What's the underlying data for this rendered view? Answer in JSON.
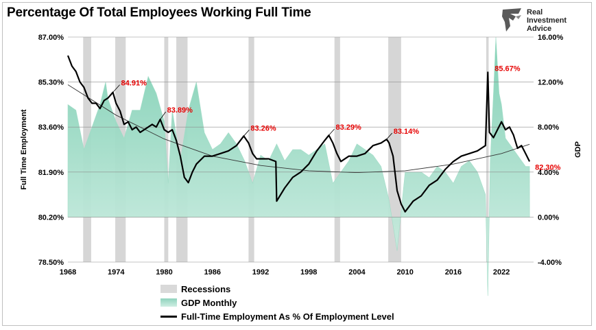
{
  "title": "Percentage Of Total Employees Working Full Time",
  "brand": {
    "line1": "Real",
    "line2": "Investment",
    "line3": "Advice"
  },
  "legend": {
    "recessions": "Recessions",
    "gdp": "GDP Monthly",
    "fte": "Full-Time Employment As % Of Employment Level"
  },
  "chart_data": {
    "type": "line",
    "title": "Percentage Of Total Employees Working Full Time",
    "ylabel_left": "Full Time Employment",
    "ylabel_right": "GDP",
    "xlim": [
      1968,
      2026
    ],
    "ylim_left": [
      78.5,
      87.0
    ],
    "ylim_right": [
      -4.0,
      16.0
    ],
    "x_ticks": [
      "1968",
      "1974",
      "1980",
      "1986",
      "1992",
      "1998",
      "2004",
      "2010",
      "2016",
      "2022"
    ],
    "y_ticks_left": [
      "87.00%",
      "85.30%",
      "83.60%",
      "81.90%",
      "80.20%",
      "78.50%"
    ],
    "y_ticks_right": [
      "16.00%",
      "12.00%",
      "8.00%",
      "4.00%",
      "0.00%",
      "-4.00%"
    ],
    "grid": true,
    "recessions": [
      [
        1969.9,
        1970.9
      ],
      [
        1973.9,
        1975.2
      ],
      [
        1980.0,
        1980.5
      ],
      [
        1981.5,
        1982.9
      ],
      [
        1990.5,
        1991.2
      ],
      [
        2001.2,
        2001.9
      ],
      [
        2007.9,
        2009.5
      ],
      [
        2020.1,
        2020.4
      ]
    ],
    "annotations": [
      {
        "label": "84.91%",
        "x": 1973.6,
        "y": 84.91
      },
      {
        "label": "83.89%",
        "x": 1979.5,
        "y": 83.89
      },
      {
        "label": "83.26%",
        "x": 1989.9,
        "y": 83.26
      },
      {
        "label": "83.29%",
        "x": 2000.5,
        "y": 83.29
      },
      {
        "label": "83.14%",
        "x": 2007.7,
        "y": 83.14
      },
      {
        "label": "85.67%",
        "x": 2020.3,
        "y": 85.67
      },
      {
        "label": "82.30%",
        "x": 2025.5,
        "y": 82.3
      }
    ],
    "series": [
      {
        "name": "Full-Time Employment As % Of Employment Level",
        "axis": "left",
        "x": [
          1968.0,
          1968.5,
          1969.0,
          1969.5,
          1970.0,
          1970.5,
          1971.0,
          1971.5,
          1972.0,
          1972.5,
          1973.0,
          1973.6,
          1974.0,
          1974.5,
          1975.0,
          1975.5,
          1976.0,
          1976.5,
          1977.0,
          1977.5,
          1978.0,
          1978.5,
          1979.0,
          1979.5,
          1980.0,
          1980.5,
          1981.0,
          1981.5,
          1982.0,
          1982.5,
          1983.0,
          1983.5,
          1984.0,
          1985.0,
          1986.0,
          1987.0,
          1988.0,
          1989.0,
          1989.9,
          1990.5,
          1991.0,
          1991.5,
          1992.0,
          1993.0,
          1993.9,
          1994.0,
          1995.0,
          1996.0,
          1997.0,
          1998.0,
          1999.0,
          2000.0,
          2000.5,
          2001.0,
          2001.5,
          2002.0,
          2003.0,
          2004.0,
          2005.0,
          2006.0,
          2007.0,
          2007.7,
          2008.0,
          2008.5,
          2009.0,
          2009.5,
          2010.0,
          2011.0,
          2012.0,
          2013.0,
          2014.0,
          2015.0,
          2016.0,
          2017.0,
          2018.0,
          2019.0,
          2020.0,
          2020.3,
          2020.5,
          2021.0,
          2021.5,
          2022.0,
          2022.5,
          2023.0,
          2023.5,
          2024.0,
          2024.5,
          2025.0,
          2025.5
        ],
        "values": [
          86.3,
          85.9,
          85.7,
          85.3,
          85.1,
          84.7,
          84.5,
          84.5,
          84.3,
          84.6,
          84.7,
          84.91,
          84.5,
          84.2,
          83.7,
          83.8,
          83.5,
          83.6,
          83.4,
          83.5,
          83.6,
          83.7,
          83.6,
          83.89,
          83.5,
          83.4,
          83.5,
          83.1,
          82.5,
          81.7,
          81.5,
          81.9,
          82.2,
          82.5,
          82.5,
          82.6,
          82.7,
          82.9,
          83.26,
          83.0,
          82.6,
          82.4,
          82.4,
          82.4,
          82.3,
          80.8,
          81.3,
          81.7,
          81.9,
          82.2,
          82.7,
          83.1,
          83.29,
          83.0,
          82.6,
          82.3,
          82.5,
          82.5,
          82.6,
          82.9,
          83.0,
          83.14,
          83.0,
          82.5,
          81.2,
          80.7,
          80.4,
          80.8,
          81.0,
          81.4,
          81.6,
          82.0,
          82.3,
          82.5,
          82.6,
          82.7,
          82.9,
          85.67,
          83.4,
          83.2,
          83.5,
          83.8,
          83.5,
          83.6,
          83.3,
          82.8,
          82.9,
          82.6,
          82.3
        ]
      },
      {
        "name": "Trend",
        "axis": "left",
        "x": [
          1968,
          1974,
          1980,
          1986,
          1992,
          1998,
          2004,
          2010,
          2016,
          2022,
          2025.5
        ],
        "values": [
          85.2,
          84.05,
          83.15,
          82.5,
          82.15,
          81.95,
          81.88,
          81.95,
          82.2,
          82.6,
          82.95
        ]
      },
      {
        "name": "GDP Monthly",
        "axis": "right",
        "x": [
          1968.0,
          1969.0,
          1970.0,
          1971.0,
          1972.0,
          1972.7,
          1973.0,
          1974.0,
          1975.0,
          1976.0,
          1977.0,
          1978.0,
          1979.0,
          1980.0,
          1980.5,
          1981.0,
          1982.0,
          1983.0,
          1984.0,
          1985.0,
          1986.0,
          1987.0,
          1988.0,
          1989.0,
          1990.0,
          1991.0,
          1992.0,
          1993.0,
          1994.0,
          1995.0,
          1996.0,
          1997.0,
          1998.0,
          1999.0,
          2000.0,
          2001.0,
          2002.0,
          2003.0,
          2004.0,
          2005.0,
          2006.0,
          2007.0,
          2008.0,
          2009.0,
          2010.0,
          2011.0,
          2012.0,
          2013.0,
          2014.0,
          2015.0,
          2016.0,
          2017.0,
          2018.0,
          2019.0,
          2020.0,
          2020.3,
          2020.6,
          2021.0,
          2021.3,
          2021.7,
          2022.0,
          2022.5,
          2023.0,
          2024.0,
          2025.0,
          2025.5
        ],
        "values": [
          10.0,
          9.5,
          6.0,
          8.0,
          10.0,
          12.0,
          10.5,
          8.5,
          7.0,
          9.5,
          9.5,
          12.5,
          11.0,
          8.5,
          3.0,
          9.5,
          5.0,
          9.5,
          12.0,
          7.5,
          6.0,
          6.5,
          7.5,
          6.5,
          5.0,
          3.0,
          5.5,
          5.0,
          6.5,
          5.0,
          6.0,
          6.0,
          5.5,
          6.0,
          6.5,
          3.0,
          4.0,
          5.0,
          6.5,
          6.0,
          5.5,
          4.5,
          1.5,
          -3.0,
          4.0,
          4.0,
          4.0,
          3.5,
          4.5,
          4.0,
          3.0,
          4.5,
          5.0,
          4.0,
          2.0,
          -7.0,
          5.0,
          11.0,
          16.0,
          11.0,
          10.0,
          7.0,
          6.5,
          5.5,
          4.5,
          4.5
        ]
      }
    ]
  }
}
